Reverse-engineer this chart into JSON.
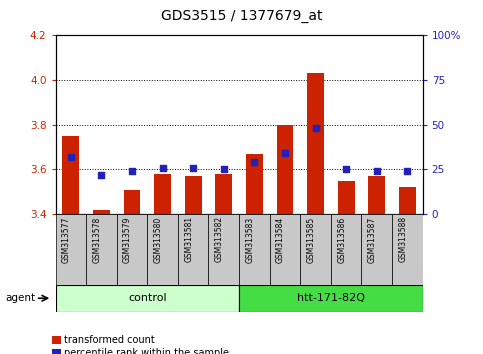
{
  "title": "GDS3515 / 1377679_at",
  "samples": [
    "GSM313577",
    "GSM313578",
    "GSM313579",
    "GSM313580",
    "GSM313581",
    "GSM313582",
    "GSM313583",
    "GSM313584",
    "GSM313585",
    "GSM313586",
    "GSM313587",
    "GSM313588"
  ],
  "bar_values": [
    3.75,
    3.42,
    3.51,
    3.58,
    3.57,
    3.58,
    3.67,
    3.8,
    4.03,
    3.55,
    3.57,
    3.52
  ],
  "dot_values_pct": [
    32,
    22,
    24,
    26,
    26,
    25,
    29,
    34,
    48,
    25,
    24,
    24
  ],
  "ylim_left": [
    3.4,
    4.2
  ],
  "ylim_right": [
    0,
    100
  ],
  "yticks_left": [
    3.4,
    3.6,
    3.8,
    4.0,
    4.2
  ],
  "yticks_right": [
    0,
    25,
    50,
    75,
    100
  ],
  "ytick_labels_right": [
    "0",
    "25",
    "50",
    "75",
    "100%"
  ],
  "bar_color": "#cc2200",
  "dot_color": "#2222bb",
  "grid_values": [
    3.6,
    3.8,
    4.0
  ],
  "bar_bottom": 3.4,
  "groups": [
    {
      "label": "control",
      "start": 0,
      "end": 6,
      "color": "#ccffcc"
    },
    {
      "label": "htt-171-82Q",
      "start": 6,
      "end": 12,
      "color": "#44dd44"
    }
  ],
  "agent_label": "agent",
  "legend_items": [
    {
      "color": "#cc2200",
      "label": "transformed count"
    },
    {
      "color": "#2222bb",
      "label": "percentile rank within the sample"
    }
  ],
  "bg_color": "#ffffff",
  "plot_bg": "#ffffff",
  "tick_color_left": "#cc2200",
  "tick_color_right": "#2222bb",
  "cell_bg": "#c8c8c8"
}
